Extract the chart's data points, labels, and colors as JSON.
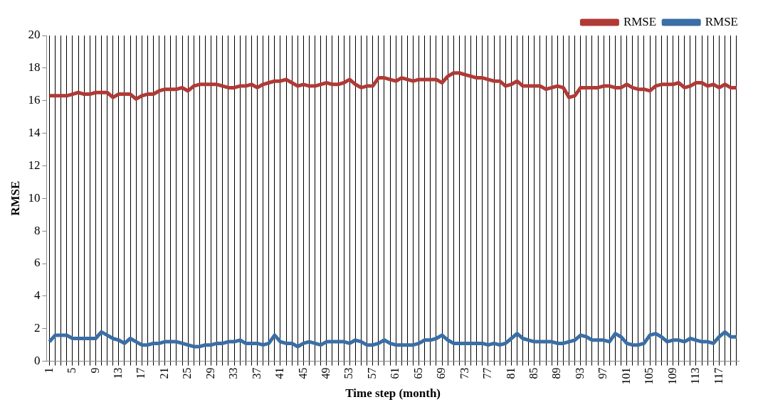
{
  "chart_data": {
    "type": "line",
    "xlabel": "Time step (month)",
    "ylabel": "RMSE",
    "categories": [
      "1",
      null,
      null,
      null,
      "5",
      null,
      null,
      null,
      "9",
      null,
      null,
      null,
      "13",
      null,
      null,
      null,
      "17",
      null,
      null,
      null,
      "21",
      null,
      null,
      null,
      "25",
      null,
      null,
      null,
      "29",
      null,
      null,
      null,
      "33",
      null,
      null,
      null,
      "37",
      null,
      null,
      null,
      "41",
      null,
      null,
      null,
      "45",
      null,
      null,
      null,
      "49",
      null,
      null,
      null,
      "53",
      null,
      null,
      null,
      "57",
      null,
      null,
      null,
      "61",
      null,
      null,
      null,
      "65",
      null,
      null,
      null,
      "69",
      null,
      null,
      null,
      "73",
      null,
      null,
      null,
      "77",
      null,
      null,
      null,
      "81",
      null,
      null,
      null,
      "85",
      null,
      null,
      null,
      "89",
      null,
      null,
      null,
      "93",
      null,
      null,
      null,
      "97",
      null,
      null,
      null,
      "101",
      null,
      null,
      null,
      "105",
      null,
      null,
      null,
      "109",
      null,
      null,
      null,
      "113",
      null,
      null,
      null,
      "117",
      null,
      null,
      null
    ],
    "series": [
      {
        "name": "RMSE",
        "color": "#b03a36",
        "values": [
          16.3,
          16.3,
          16.3,
          16.3,
          16.4,
          16.5,
          16.4,
          16.4,
          16.5,
          16.5,
          16.5,
          16.2,
          16.4,
          16.4,
          16.4,
          16.1,
          16.3,
          16.4,
          16.4,
          16.6,
          16.7,
          16.7,
          16.7,
          16.8,
          16.6,
          16.9,
          17.0,
          17.0,
          17.0,
          17.0,
          16.9,
          16.8,
          16.8,
          16.9,
          16.9,
          17.0,
          16.8,
          17.0,
          17.1,
          17.2,
          17.2,
          17.3,
          17.1,
          16.9,
          17.0,
          16.9,
          16.9,
          17.0,
          17.1,
          17.0,
          17.0,
          17.1,
          17.3,
          17.0,
          16.8,
          16.9,
          16.9,
          17.4,
          17.4,
          17.3,
          17.2,
          17.4,
          17.3,
          17.2,
          17.3,
          17.3,
          17.3,
          17.3,
          17.1,
          17.5,
          17.7,
          17.7,
          17.6,
          17.5,
          17.4,
          17.4,
          17.3,
          17.2,
          17.2,
          16.9,
          17.0,
          17.2,
          16.9,
          16.9,
          16.9,
          16.9,
          16.7,
          16.8,
          16.9,
          16.8,
          16.2,
          16.3,
          16.8,
          16.8,
          16.8,
          16.8,
          16.9,
          16.9,
          16.8,
          16.8,
          17.0,
          16.8,
          16.7,
          16.7,
          16.6,
          16.9,
          17.0,
          17.0,
          17.0,
          17.1,
          16.8,
          16.9,
          17.1,
          17.1,
          16.9,
          17.0,
          16.8,
          17.0,
          16.8,
          16.8
        ]
      },
      {
        "name": "RMSE",
        "color": "#3a6ea5",
        "values": [
          1.2,
          1.6,
          1.6,
          1.6,
          1.4,
          1.4,
          1.4,
          1.4,
          1.4,
          1.8,
          1.6,
          1.4,
          1.3,
          1.1,
          1.4,
          1.2,
          1.0,
          1.0,
          1.1,
          1.1,
          1.2,
          1.2,
          1.2,
          1.1,
          1.0,
          0.9,
          0.9,
          1.0,
          1.0,
          1.1,
          1.1,
          1.2,
          1.2,
          1.3,
          1.1,
          1.1,
          1.1,
          1.0,
          1.1,
          1.6,
          1.2,
          1.1,
          1.1,
          0.9,
          1.1,
          1.2,
          1.1,
          1.0,
          1.2,
          1.2,
          1.2,
          1.2,
          1.1,
          1.3,
          1.2,
          1.0,
          1.0,
          1.1,
          1.3,
          1.1,
          1.0,
          1.0,
          1.0,
          1.0,
          1.1,
          1.3,
          1.3,
          1.4,
          1.6,
          1.3,
          1.1,
          1.1,
          1.1,
          1.1,
          1.1,
          1.1,
          1.0,
          1.1,
          1.0,
          1.1,
          1.4,
          1.7,
          1.4,
          1.3,
          1.2,
          1.2,
          1.2,
          1.2,
          1.1,
          1.1,
          1.2,
          1.3,
          1.6,
          1.5,
          1.3,
          1.3,
          1.3,
          1.2,
          1.7,
          1.5,
          1.1,
          1.0,
          1.0,
          1.1,
          1.6,
          1.7,
          1.5,
          1.2,
          1.3,
          1.3,
          1.2,
          1.4,
          1.3,
          1.2,
          1.2,
          1.1,
          1.5,
          1.8,
          1.5,
          1.5
        ]
      }
    ],
    "ylim": [
      0,
      20
    ],
    "yticks": [
      0,
      2,
      4,
      6,
      8,
      10,
      12,
      14,
      16,
      18,
      20
    ],
    "grid": "x",
    "legend": "top right",
    "marker": "none",
    "line_style": "solid"
  }
}
